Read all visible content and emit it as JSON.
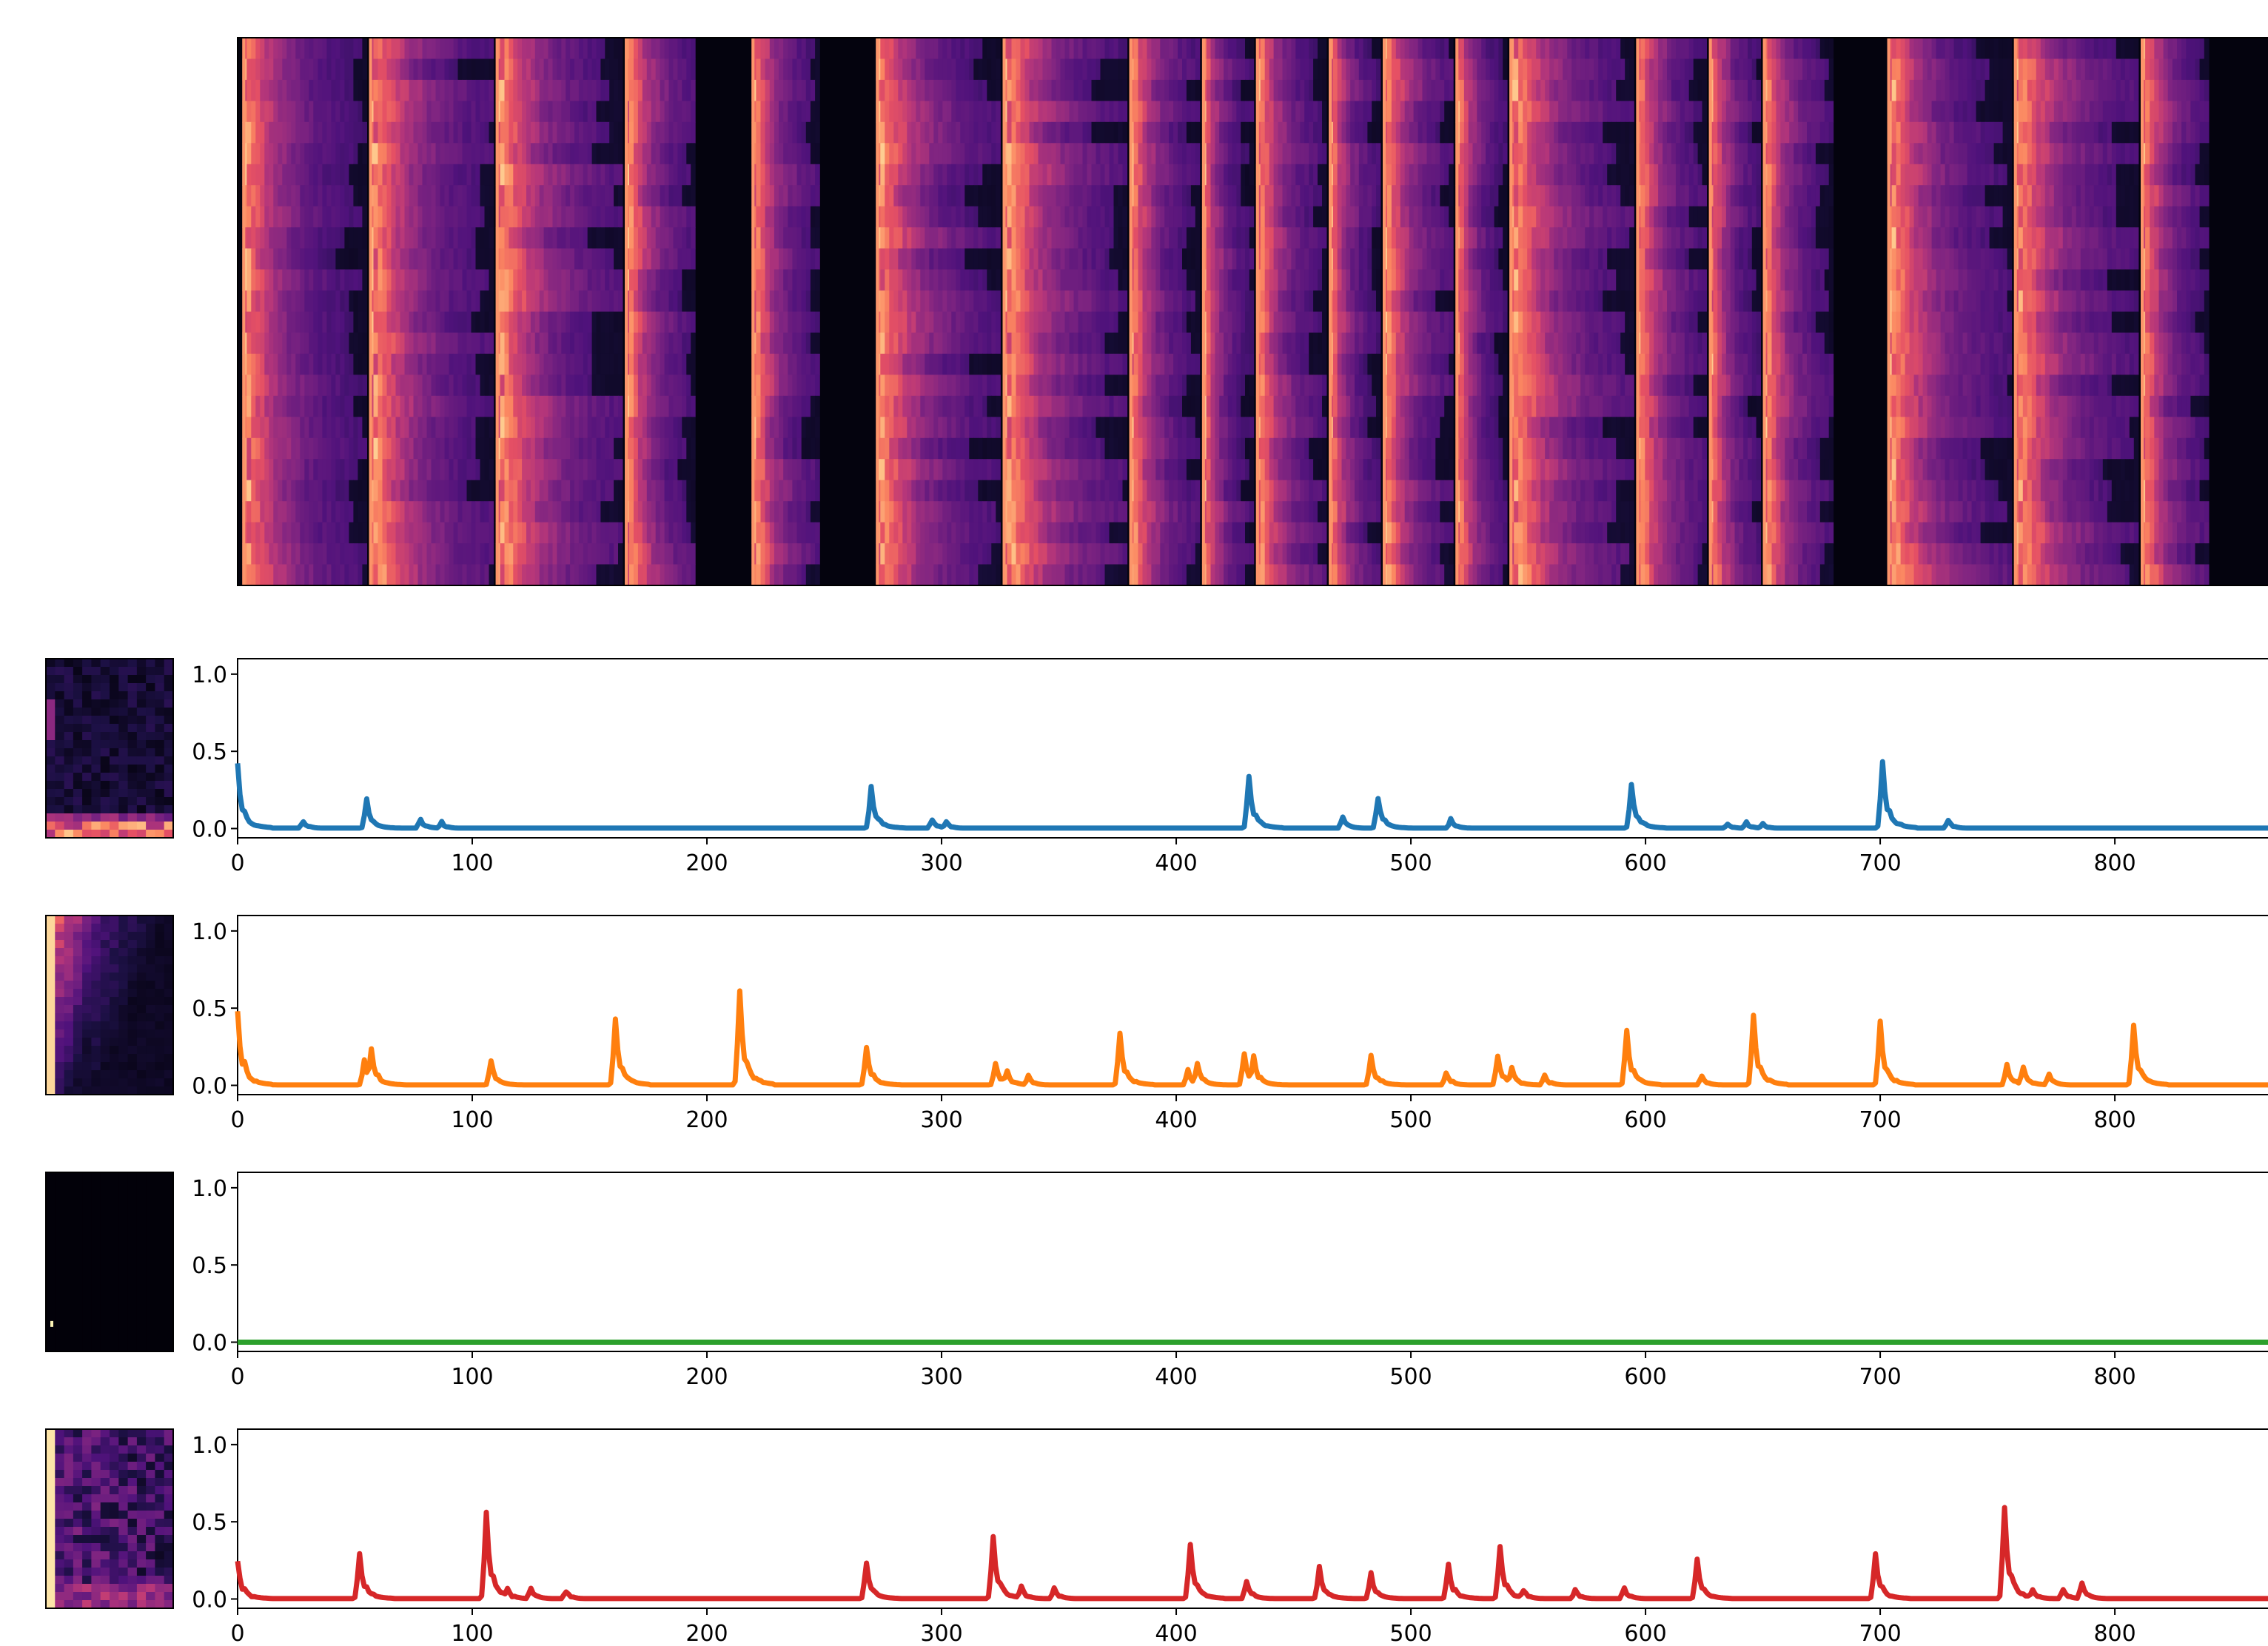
{
  "figure": {
    "background": "#ffffff",
    "spectrogram_colormap": "magma",
    "axis_color": "#000000"
  },
  "chart_data": [
    {
      "type": "heatmap",
      "name": "spectrogram",
      "colormap": "magma",
      "x_range": [
        0,
        870
      ],
      "ticks_visible": false,
      "segments": [
        {
          "start": 2,
          "end": 55,
          "peak": 0.85
        },
        {
          "start": 56,
          "end": 109,
          "peak": 0.92
        },
        {
          "start": 110,
          "end": 164,
          "peak": 0.95
        },
        {
          "start": 165,
          "end": 195,
          "peak": 0.9
        },
        {
          "start": 219,
          "end": 248,
          "peak": 0.9
        },
        {
          "start": 272,
          "end": 325,
          "peak": 0.9
        },
        {
          "start": 326,
          "end": 379,
          "peak": 0.95
        },
        {
          "start": 380,
          "end": 410,
          "peak": 0.88
        },
        {
          "start": 411,
          "end": 433,
          "peak": 0.82
        },
        {
          "start": 434,
          "end": 464,
          "peak": 0.9
        },
        {
          "start": 465,
          "end": 487,
          "peak": 0.85
        },
        {
          "start": 488,
          "end": 518,
          "peak": 0.92
        },
        {
          "start": 519,
          "end": 541,
          "peak": 0.85
        },
        {
          "start": 542,
          "end": 595,
          "peak": 0.95
        },
        {
          "start": 596,
          "end": 626,
          "peak": 0.9
        },
        {
          "start": 627,
          "end": 649,
          "peak": 0.85
        },
        {
          "start": 650,
          "end": 680,
          "peak": 0.9
        },
        {
          "start": 703,
          "end": 756,
          "peak": 0.9
        },
        {
          "start": 757,
          "end": 810,
          "peak": 0.92
        },
        {
          "start": 811,
          "end": 840,
          "peak": 0.88
        }
      ]
    },
    {
      "type": "line",
      "name": "row-1",
      "color": "#1f77b4",
      "xlim": [
        0,
        870
      ],
      "ylim": [
        -0.06,
        1.1
      ],
      "x_ticks": [
        "0",
        "100",
        "200",
        "300",
        "400",
        "500",
        "600",
        "700",
        "800"
      ],
      "y_ticks": [
        "0.0",
        "0.5",
        "1.0"
      ],
      "baseline": 0.003,
      "peaks": [
        [
          0,
          0.42
        ],
        [
          28,
          0.05
        ],
        [
          55,
          0.19
        ],
        [
          78,
          0.06
        ],
        [
          87,
          0.04
        ],
        [
          270,
          0.27
        ],
        [
          296,
          0.06
        ],
        [
          302,
          0.04
        ],
        [
          431,
          0.34
        ],
        [
          471,
          0.07
        ],
        [
          486,
          0.2
        ],
        [
          517,
          0.06
        ],
        [
          594,
          0.29
        ],
        [
          635,
          0.03
        ],
        [
          643,
          0.04
        ],
        [
          650,
          0.03
        ],
        [
          701,
          0.43
        ],
        [
          729,
          0.05
        ]
      ],
      "thumbnail": {
        "pattern": "bottom-band"
      }
    },
    {
      "type": "line",
      "name": "row-2",
      "color": "#ff7f0e",
      "xlim": [
        0,
        870
      ],
      "ylim": [
        -0.06,
        1.1
      ],
      "x_ticks": [
        "0",
        "100",
        "200",
        "300",
        "400",
        "500",
        "600",
        "700",
        "800"
      ],
      "y_ticks": [
        "0.0",
        "0.5",
        "1.0"
      ],
      "baseline": 0.003,
      "peaks": [
        [
          0,
          0.48
        ],
        [
          3,
          0.16
        ],
        [
          54,
          0.16
        ],
        [
          57,
          0.24
        ],
        [
          108,
          0.16
        ],
        [
          161,
          0.43
        ],
        [
          214,
          0.61
        ],
        [
          268,
          0.25
        ],
        [
          323,
          0.14
        ],
        [
          328,
          0.1
        ],
        [
          337,
          0.06
        ],
        [
          376,
          0.34
        ],
        [
          405,
          0.1
        ],
        [
          409,
          0.14
        ],
        [
          429,
          0.21
        ],
        [
          433,
          0.19
        ],
        [
          483,
          0.2
        ],
        [
          515,
          0.08
        ],
        [
          537,
          0.19
        ],
        [
          543,
          0.12
        ],
        [
          557,
          0.07
        ],
        [
          592,
          0.36
        ],
        [
          624,
          0.06
        ],
        [
          646,
          0.45
        ],
        [
          700,
          0.41
        ],
        [
          754,
          0.13
        ],
        [
          761,
          0.12
        ],
        [
          772,
          0.07
        ],
        [
          808,
          0.39
        ]
      ],
      "thumbnail": {
        "pattern": "left-column"
      }
    },
    {
      "type": "line",
      "name": "row-3",
      "color": "#2ca02c",
      "xlim": [
        0,
        870
      ],
      "ylim": [
        -0.06,
        1.1
      ],
      "x_ticks": [
        "0",
        "100",
        "200",
        "300",
        "400",
        "500",
        "600",
        "700",
        "800"
      ],
      "y_ticks": [
        "0.0",
        "0.5",
        "1.0"
      ],
      "baseline": 0.0,
      "peaks": [],
      "thumbnail": {
        "pattern": "single-dot"
      }
    },
    {
      "type": "line",
      "name": "row-4",
      "color": "#d62728",
      "xlim": [
        0,
        870
      ],
      "ylim": [
        -0.06,
        1.1
      ],
      "x_ticks": [
        "0",
        "100",
        "200",
        "300",
        "400",
        "500",
        "600",
        "700",
        "800"
      ],
      "y_ticks": [
        "0.0",
        "0.5",
        "1.0"
      ],
      "baseline": 0.003,
      "peaks": [
        [
          0,
          0.24
        ],
        [
          52,
          0.29
        ],
        [
          106,
          0.56
        ],
        [
          115,
          0.07
        ],
        [
          125,
          0.07
        ],
        [
          140,
          0.05
        ],
        [
          268,
          0.23
        ],
        [
          322,
          0.41
        ],
        [
          334,
          0.08
        ],
        [
          348,
          0.07
        ],
        [
          406,
          0.35
        ],
        [
          430,
          0.11
        ],
        [
          461,
          0.21
        ],
        [
          483,
          0.17
        ],
        [
          516,
          0.22
        ],
        [
          538,
          0.34
        ],
        [
          548,
          0.06
        ],
        [
          570,
          0.06
        ],
        [
          591,
          0.07
        ],
        [
          622,
          0.26
        ],
        [
          698,
          0.29
        ],
        [
          753,
          0.59
        ],
        [
          765,
          0.06
        ],
        [
          778,
          0.06
        ],
        [
          786,
          0.1
        ]
      ],
      "thumbnail": {
        "pattern": "left-column-band"
      }
    }
  ]
}
